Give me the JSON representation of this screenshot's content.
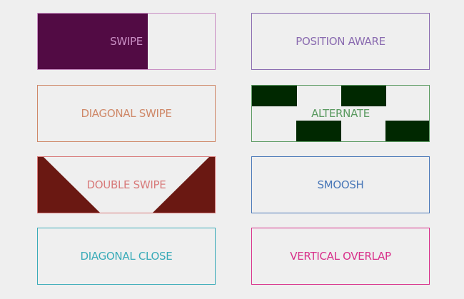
{
  "buttons": [
    {
      "label": "SWIPE",
      "color": "#c98fc4",
      "fill": "#520b44",
      "fill_percent": 62
    },
    {
      "label": "POSITION AWARE",
      "color": "#8a6bb0"
    },
    {
      "label": "DIAGONAL SWIPE",
      "color": "#cf8868"
    },
    {
      "label": "ALTERNATE",
      "color": "#5a9a60",
      "fill": "#002800"
    },
    {
      "label": "DOUBLE SWIPE",
      "color": "#d87a7a",
      "fill": "#6a1812"
    },
    {
      "label": "SMOOSH",
      "color": "#4a78b8"
    },
    {
      "label": "DIAGONAL CLOSE",
      "color": "#3aabb8"
    },
    {
      "label": "VERTICAL OVERLAP",
      "color": "#d8308a"
    }
  ]
}
